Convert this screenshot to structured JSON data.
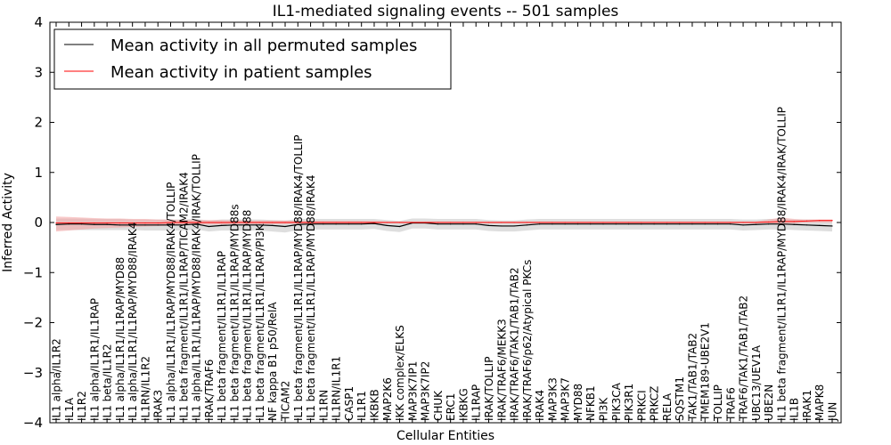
{
  "chart_data": {
    "type": "line",
    "title": "IL1-mediated signaling events -- 501 samples",
    "xlabel": "Cellular Entities",
    "ylabel": "Inferred Activity",
    "ylim": [
      -4,
      4
    ],
    "yticks": [
      -4,
      -3,
      -2,
      -1,
      0,
      1,
      2,
      3,
      4
    ],
    "yticklabels": [
      "−4",
      "−3",
      "−2",
      "−1",
      "0",
      "1",
      "2",
      "3",
      "4"
    ],
    "legend_position": "top-left",
    "categories": [
      "IL1 alpha/IL1R2",
      "IL1A",
      "IL1R2",
      "IL1 alpha/IL1R1/IL1RAP",
      "IL1 beta/IL1R2",
      "IL1 alpha/IL1R1/IL1RAP/MYD88",
      "IL1 alpha/IL1R1/IL1RAP/MYD88/IRAK4",
      "IL1RN/IL1R2",
      "IRAK3",
      "IL1 alpha/IL1R1/IL1RAP/MYD88/IRAK4/TOLLIP",
      "IL1 beta fragment/IL1R1/IL1RAP/TICAM2/IRAK4",
      "IL1 alpha/IL1R1/IL1RAP/MYD88/IRAK4/IRAK/TOLLIP",
      "IRAK/TRAF6",
      "IL1 beta fragment/IL1R1/IL1RAP",
      "IL1 beta fragment/IL1R1/IL1RAP/MYD88s",
      "IL1 beta fragment/IL1R1/IL1RAP/MYD88",
      "IL1 beta fragment/IL1R1/IL1RAP/PI3K",
      "NF kappa B1 p50/RelA",
      "TICAM2",
      "IL1 beta fragment/IL1R1/IL1RAP/MYD88/IRAK4/TOLLIP",
      "IL1 beta fragment/IL1R1/IL1RAP/MYD88/IRAK4",
      "IL1RN",
      "IL1RN/IL1R1",
      "CASP1",
      "IL1R1",
      "IKBKB",
      "MAP2K6",
      "IKK complex/ELKS",
      "MAP3K7IP1",
      "MAP3K7IP2",
      "CHUK",
      "ERC1",
      "IKBKG",
      "IL1RAP",
      "IRAK/TOLLIP",
      "IRAK/TRAF6/MEKK3",
      "IRAK/TRAF6/TAK1/TAB1/TAB2",
      "IRAK/TRAF6/p62/Atypical PKCs",
      "IRAK4",
      "MAP3K3",
      "MAP3K7",
      "MYD88",
      "NFKB1",
      "PI3K",
      "PIK3CA",
      "PIK3R1",
      "PRKCI",
      "PRKCZ",
      "RELA",
      "SQSTM1",
      "TAK1/TAB1/TAB2",
      "TMEM189-UBE2V1",
      "TOLLIP",
      "TRAF6",
      "TRAF6/TAK1/TAB1/TAB2",
      "UBC13/UEV1A",
      "UBE2N",
      "IL1 beta fragment/IL1R1/IL1RAP/MYD88/IRAK4/IRAK/TOLLIP",
      "IL1B",
      "IRAK1",
      "MAPK8",
      "JUN"
    ],
    "series": [
      {
        "name": "Mean activity in all permuted samples",
        "color": "#000000",
        "band_color": "#c8c8c8",
        "values": [
          -0.04,
          -0.03,
          -0.03,
          -0.04,
          -0.04,
          -0.05,
          -0.05,
          -0.05,
          -0.05,
          -0.05,
          -0.05,
          -0.03,
          -0.08,
          -0.06,
          -0.05,
          -0.05,
          -0.05,
          -0.06,
          -0.08,
          -0.04,
          -0.03,
          -0.03,
          -0.03,
          -0.03,
          -0.03,
          -0.02,
          -0.06,
          -0.08,
          -0.01,
          -0.01,
          -0.03,
          -0.03,
          -0.03,
          -0.03,
          -0.06,
          -0.07,
          -0.07,
          -0.05,
          -0.03,
          -0.03,
          -0.03,
          -0.03,
          -0.03,
          -0.03,
          -0.03,
          -0.03,
          -0.03,
          -0.03,
          -0.03,
          -0.03,
          -0.03,
          -0.03,
          -0.03,
          -0.03,
          -0.05,
          -0.04,
          -0.03,
          -0.03,
          -0.04,
          -0.05,
          -0.06,
          -0.07
        ],
        "band_lower": [
          -0.15,
          -0.15,
          -0.15,
          -0.15,
          -0.15,
          -0.15,
          -0.15,
          -0.16,
          -0.16,
          -0.16,
          -0.16,
          -0.14,
          -0.18,
          -0.16,
          -0.16,
          -0.16,
          -0.16,
          -0.18,
          -0.2,
          -0.15,
          -0.14,
          -0.14,
          -0.14,
          -0.14,
          -0.14,
          -0.13,
          -0.17,
          -0.19,
          -0.12,
          -0.12,
          -0.14,
          -0.14,
          -0.14,
          -0.14,
          -0.17,
          -0.18,
          -0.18,
          -0.16,
          -0.14,
          -0.14,
          -0.14,
          -0.14,
          -0.14,
          -0.14,
          -0.14,
          -0.14,
          -0.14,
          -0.14,
          -0.14,
          -0.14,
          -0.14,
          -0.14,
          -0.14,
          -0.14,
          -0.16,
          -0.15,
          -0.14,
          -0.14,
          -0.15,
          -0.16,
          -0.17,
          -0.18
        ],
        "band_upper": [
          0.08,
          0.08,
          0.08,
          0.07,
          0.07,
          0.07,
          0.06,
          0.06,
          0.06,
          0.06,
          0.06,
          0.07,
          0.04,
          0.06,
          0.06,
          0.06,
          0.06,
          0.05,
          0.04,
          0.07,
          0.07,
          0.07,
          0.07,
          0.07,
          0.07,
          0.07,
          0.05,
          0.03,
          0.08,
          0.08,
          0.07,
          0.07,
          0.07,
          0.07,
          0.05,
          0.04,
          0.04,
          0.06,
          0.07,
          0.07,
          0.07,
          0.07,
          0.07,
          0.07,
          0.07,
          0.07,
          0.07,
          0.07,
          0.07,
          0.07,
          0.07,
          0.07,
          0.07,
          0.07,
          0.06,
          0.06,
          0.07,
          0.07,
          0.06,
          0.06,
          0.05,
          0.04
        ]
      },
      {
        "name": "Mean activity in patient samples",
        "color": "#ff0000",
        "band_color": "#f4a0a0",
        "values": [
          -0.01,
          -0.01,
          -0.01,
          -0.01,
          -0.01,
          -0.01,
          -0.01,
          -0.01,
          -0.01,
          0.0,
          0.0,
          0.0,
          0.0,
          0.0,
          0.0,
          0.0,
          0.0,
          0.0,
          0.0,
          0.0,
          0.0,
          0.0,
          0.0,
          0.0,
          0.0,
          0.0,
          0.0,
          0.0,
          0.0,
          0.0,
          0.0,
          0.0,
          0.0,
          0.0,
          0.0,
          0.0,
          0.0,
          0.0,
          0.0,
          0.0,
          0.0,
          0.0,
          0.0,
          0.0,
          0.0,
          0.0,
          0.0,
          0.0,
          0.0,
          0.0,
          0.0,
          0.0,
          0.0,
          0.0,
          0.0,
          0.0,
          0.01,
          0.02,
          0.02,
          0.03,
          0.04,
          0.04
        ],
        "band_lower": [
          -0.18,
          -0.16,
          -0.14,
          -0.12,
          -0.11,
          -0.1,
          -0.09,
          -0.08,
          -0.07,
          -0.06,
          -0.05,
          -0.04,
          -0.04,
          -0.04,
          -0.03,
          -0.03,
          -0.03,
          -0.03,
          -0.03,
          -0.02,
          -0.02,
          -0.02,
          -0.02,
          -0.02,
          -0.02,
          -0.02,
          -0.01,
          -0.01,
          -0.01,
          -0.01,
          -0.01,
          -0.01,
          -0.01,
          -0.01,
          -0.01,
          -0.01,
          -0.01,
          -0.01,
          -0.01,
          -0.01,
          -0.01,
          -0.01,
          -0.01,
          -0.01,
          -0.01,
          -0.01,
          -0.01,
          -0.01,
          -0.01,
          -0.01,
          -0.01,
          -0.01,
          -0.01,
          -0.01,
          -0.01,
          -0.01,
          -0.02,
          -0.03,
          -0.02,
          -0.01,
          0.0,
          0.0
        ],
        "band_upper": [
          0.12,
          0.11,
          0.1,
          0.09,
          0.08,
          0.08,
          0.07,
          0.07,
          0.06,
          0.06,
          0.05,
          0.05,
          0.05,
          0.05,
          0.04,
          0.04,
          0.04,
          0.04,
          0.04,
          0.03,
          0.03,
          0.03,
          0.03,
          0.03,
          0.03,
          0.03,
          0.02,
          0.02,
          0.02,
          0.02,
          0.02,
          0.02,
          0.02,
          0.02,
          0.02,
          0.02,
          0.02,
          0.02,
          0.02,
          0.02,
          0.02,
          0.02,
          0.02,
          0.02,
          0.02,
          0.02,
          0.02,
          0.02,
          0.02,
          0.02,
          0.02,
          0.02,
          0.02,
          0.02,
          0.02,
          0.02,
          0.06,
          0.1,
          0.07,
          0.06,
          0.06,
          0.06
        ]
      }
    ]
  }
}
